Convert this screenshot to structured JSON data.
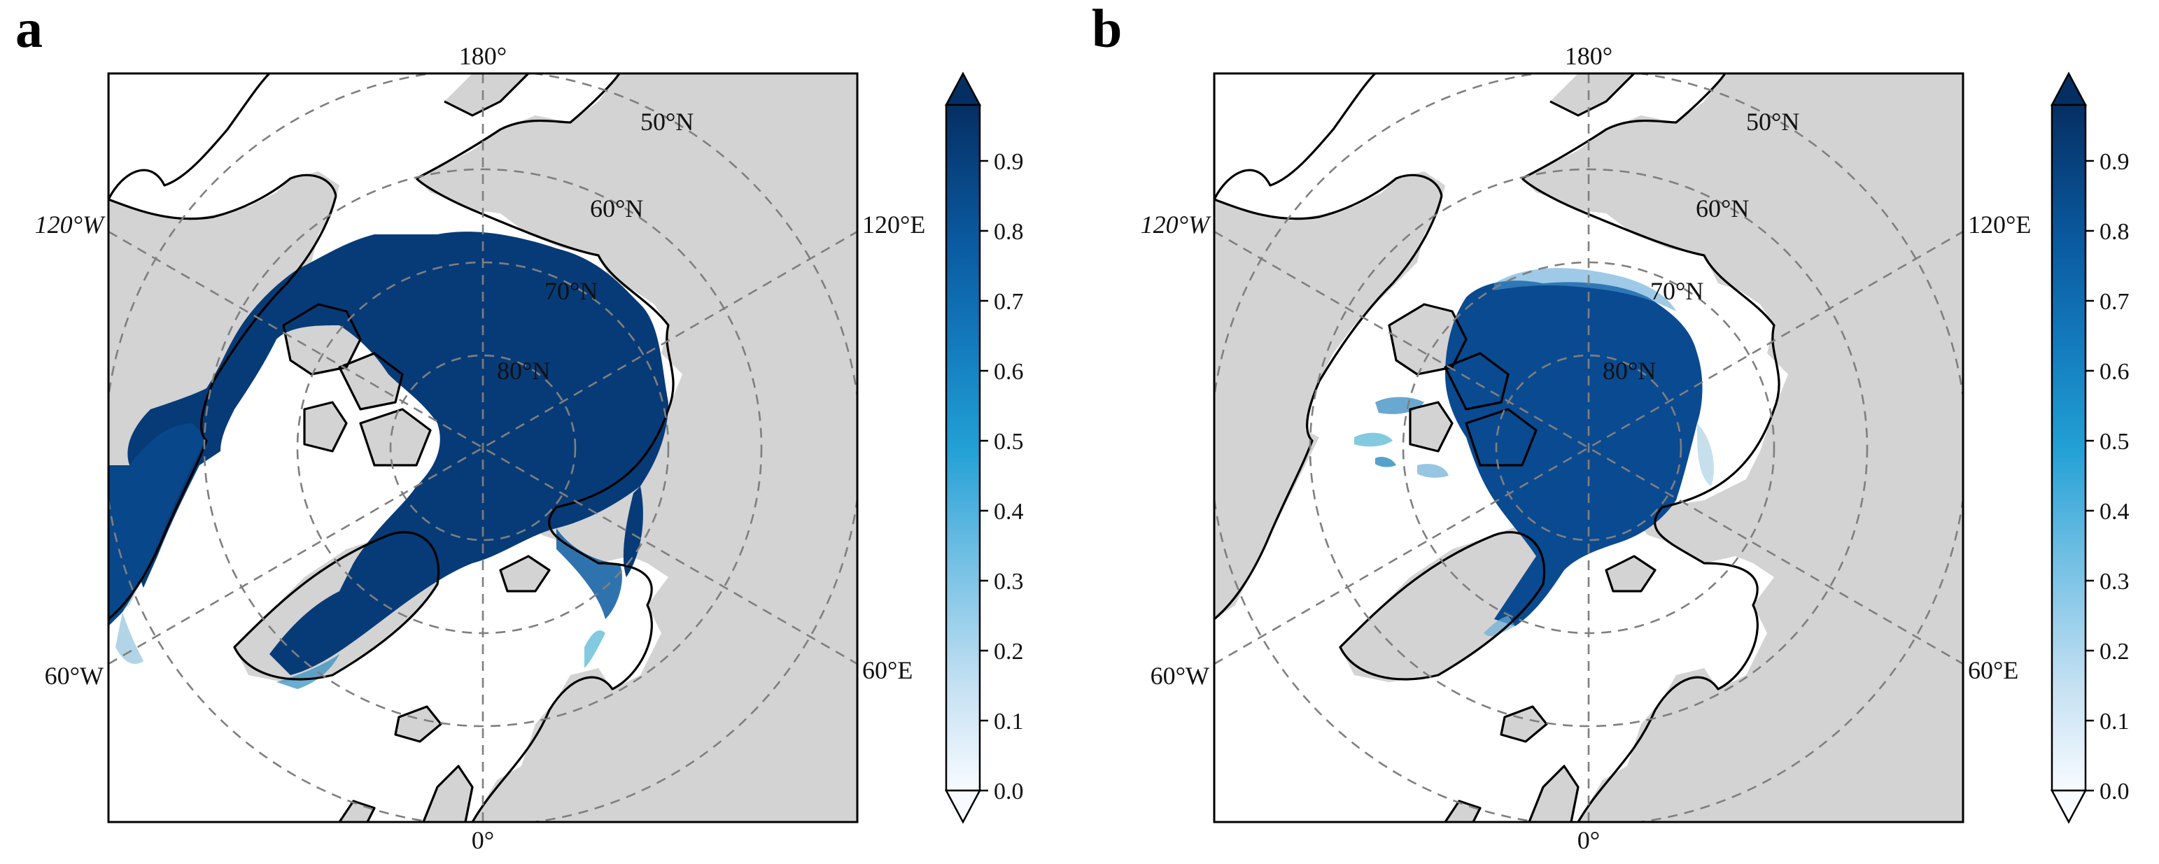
{
  "figure": {
    "panels": [
      {
        "letter": "a",
        "labels": {
          "lon_top": "180°",
          "lon_bottom": "0°",
          "lon_left_upper": "120°W",
          "lon_right_upper": "120°E",
          "lon_left_lower": "60°W",
          "lon_right_lower": "60°E",
          "lat_50": "50°N",
          "lat_60": "60°N",
          "lat_70": "70°N",
          "lat_80": "80°N"
        },
        "ice_style": "full"
      },
      {
        "letter": "b",
        "labels": {
          "lon_top": "180°",
          "lon_bottom": "0°",
          "lon_left_upper": "120°W",
          "lon_right_upper": "120°E",
          "lon_left_lower": "60°W",
          "lon_right_lower": "60°E",
          "lat_50": "50°N",
          "lat_60": "60°N",
          "lat_70": "70°N",
          "lat_80": "80°N"
        },
        "ice_style": "core"
      }
    ],
    "colorbar": {
      "ticks": [
        "0.0",
        "0.1",
        "0.2",
        "0.3",
        "0.4",
        "0.5",
        "0.6",
        "0.7",
        "0.8",
        "0.9"
      ],
      "colors": [
        "#f7fbff",
        "#d4e9f7",
        "#a9d5ee",
        "#72c0e4",
        "#31a7d8",
        "#1b8bc7",
        "#1170b3",
        "#0b5aa0",
        "#08478a",
        "#063a75",
        "#052f63"
      ],
      "extend": "both"
    },
    "colors": {
      "land": "#d3d3d3",
      "ocean": "#ffffff",
      "coast": "#000000",
      "grid": "#7f7f7f",
      "ice_high": "#073b78"
    }
  }
}
